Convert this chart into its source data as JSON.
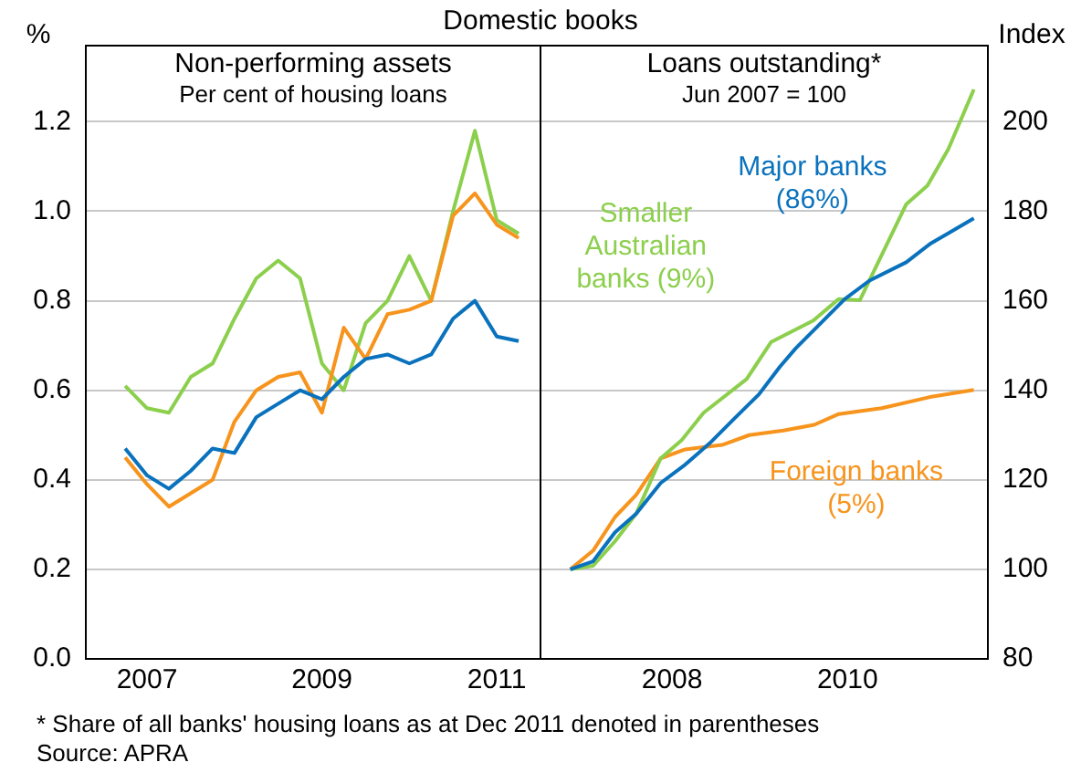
{
  "chart_data": [
    {
      "type": "line",
      "title": "Non-performing assets",
      "subtitle": "Per cent of housing loans",
      "ylabel": "%",
      "annotations": [
        "Domestic books"
      ],
      "x": [
        2007.25,
        2007.5,
        2007.75,
        2008,
        2008.25,
        2008.5,
        2008.75,
        2009,
        2009.25,
        2009.5,
        2009.75,
        2010,
        2010.25,
        2010.5,
        2010.75,
        2011,
        2011.25,
        2011.5,
        2011.75
      ],
      "series": [
        {
          "color": "#0a72bd",
          "values": [
            0.47,
            0.41,
            0.38,
            0.42,
            0.47,
            0.46,
            0.54,
            0.57,
            0.6,
            0.58,
            0.63,
            0.67,
            0.68,
            0.66,
            0.68,
            0.76,
            0.8,
            0.72,
            0.71
          ]
        },
        {
          "color": "#f7941d",
          "values": [
            0.45,
            0.39,
            0.34,
            0.37,
            0.4,
            0.53,
            0.6,
            0.63,
            0.64,
            0.55,
            0.74,
            0.67,
            0.77,
            0.78,
            0.8,
            0.99,
            1.04,
            0.97,
            0.94
          ]
        },
        {
          "color": "#8ccf4d",
          "values": [
            0.61,
            0.56,
            0.55,
            0.63,
            0.66,
            0.76,
            0.85,
            0.89,
            0.85,
            0.66,
            0.6,
            0.75,
            0.8,
            0.9,
            0.8,
            1.0,
            1.18,
            0.98,
            0.95
          ]
        }
      ],
      "xlim": [
        2006.8,
        2012
      ],
      "xticks": [
        {
          "value": 2007.5,
          "label": "2007"
        },
        {
          "value": 2009.5,
          "label": "2009"
        },
        {
          "value": 2011.5,
          "label": "2011"
        }
      ],
      "ylim": [
        0,
        1.37
      ],
      "yticks": [
        {
          "value": 0,
          "label": "0.0"
        },
        {
          "value": 0.2,
          "label": "0.2"
        },
        {
          "value": 0.4,
          "label": "0.4"
        },
        {
          "value": 0.6,
          "label": "0.6"
        },
        {
          "value": 0.8,
          "label": "0.8"
        },
        {
          "value": 1,
          "label": "1.0"
        },
        {
          "value": 1.2,
          "label": "1.2"
        }
      ],
      "grid": "y",
      "legend": false
    },
    {
      "type": "line",
      "title": "Loans outstanding*",
      "subtitle": "Jun 2007 = 100",
      "ylabel": "Index",
      "annotations": [
        "* Share of all banks' housing loans as at Dec 2011 denoted in parentheses",
        "Source: APRA"
      ],
      "series": [
        {
          "name": "Major banks (86%)",
          "color": "#0a72bd",
          "x": [
            2007.34,
            2007.6,
            2007.85,
            2008.09,
            2008.37,
            2008.65,
            2008.93,
            2009.21,
            2009.49,
            2009.73,
            2009.91,
            2010.19,
            2010.47,
            2010.75,
            2011.17,
            2011.44,
            2011.94
          ],
          "values": [
            100,
            101.8,
            108.3,
            112.4,
            119.3,
            123.4,
            128.2,
            133.7,
            139.1,
            145.3,
            149.4,
            154.9,
            160.4,
            164.5,
            168.6,
            172.7,
            178.4
          ]
        },
        {
          "name": "Smaller Australian banks (9%)",
          "color": "#8ccf4d",
          "x": [
            2007.34,
            2007.6,
            2007.85,
            2008.09,
            2008.37,
            2008.61,
            2008.86,
            2009.35,
            2009.63,
            2010.11,
            2010.4,
            2010.64,
            2011.17,
            2011.41,
            2011.65,
            2011.94
          ],
          "values": [
            100,
            100.8,
            106.3,
            112.4,
            124.8,
            128.9,
            135,
            142.5,
            150.8,
            155.6,
            160.4,
            160.1,
            181.6,
            185.7,
            193.9,
            207.2
          ]
        },
        {
          "name": "Foreign banks (5%)",
          "color": "#f7941d",
          "x": [
            2007.34,
            2007.6,
            2007.85,
            2008.09,
            2008.37,
            2008.65,
            2009.07,
            2009.38,
            2009.77,
            2010.12,
            2010.4,
            2010.89,
            2011.44,
            2011.94
          ],
          "values": [
            100,
            104.2,
            111.7,
            116.6,
            124.8,
            126.8,
            127.8,
            130,
            131,
            132.3,
            134.7,
            136,
            138.5,
            140.1
          ]
        }
      ],
      "xlim": [
        2007,
        2012.1
      ],
      "xticks": [
        {
          "value": 2008.5,
          "label": "2008"
        },
        {
          "value": 2010.5,
          "label": "2010"
        }
      ],
      "ylim": [
        80,
        217
      ],
      "yticks": [
        80,
        100,
        120,
        140,
        160,
        180,
        200
      ],
      "grid": "y",
      "legend": false
    }
  ]
}
